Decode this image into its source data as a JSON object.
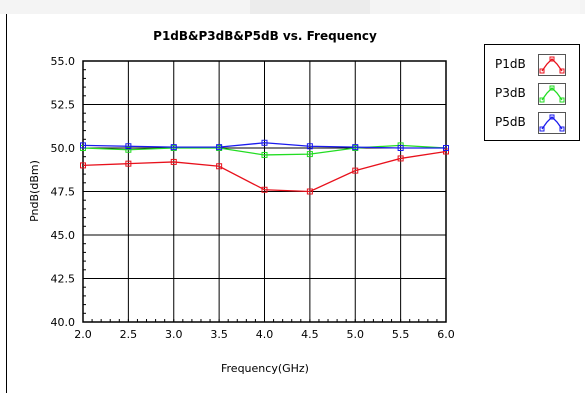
{
  "chart_data": {
    "type": "line",
    "title": "P1dB&P3dB&P5dB vs. Frequency",
    "xlabel": "Frequency(GHz)",
    "ylabel": "PndB(dBm)",
    "xlim": [
      2.0,
      6.0
    ],
    "ylim": [
      40.0,
      55.0
    ],
    "x_ticks": [
      "2.0",
      "2.5",
      "3.0",
      "3.5",
      "4.0",
      "4.5",
      "5.0",
      "5.5",
      "6.0"
    ],
    "y_ticks": [
      "40.0",
      "42.5",
      "45.0",
      "47.5",
      "50.0",
      "52.5",
      "55.0"
    ],
    "grid": true,
    "legend_position": "top-right outside",
    "x": [
      2.0,
      2.5,
      3.0,
      3.5,
      4.0,
      4.5,
      5.0,
      5.5,
      6.0
    ],
    "series": [
      {
        "name": "P1dB",
        "color": "#e8111c",
        "values": [
          49.0,
          49.1,
          49.2,
          48.95,
          47.6,
          47.5,
          48.7,
          49.4,
          49.8
        ]
      },
      {
        "name": "P3dB",
        "color": "#22dd22",
        "values": [
          50.0,
          49.9,
          50.0,
          50.0,
          49.6,
          49.65,
          50.0,
          50.15,
          50.0
        ]
      },
      {
        "name": "P5dB",
        "color": "#1a1aee",
        "values": [
          50.15,
          50.1,
          50.05,
          50.05,
          50.3,
          50.1,
          50.05,
          50.0,
          50.0
        ]
      }
    ]
  }
}
